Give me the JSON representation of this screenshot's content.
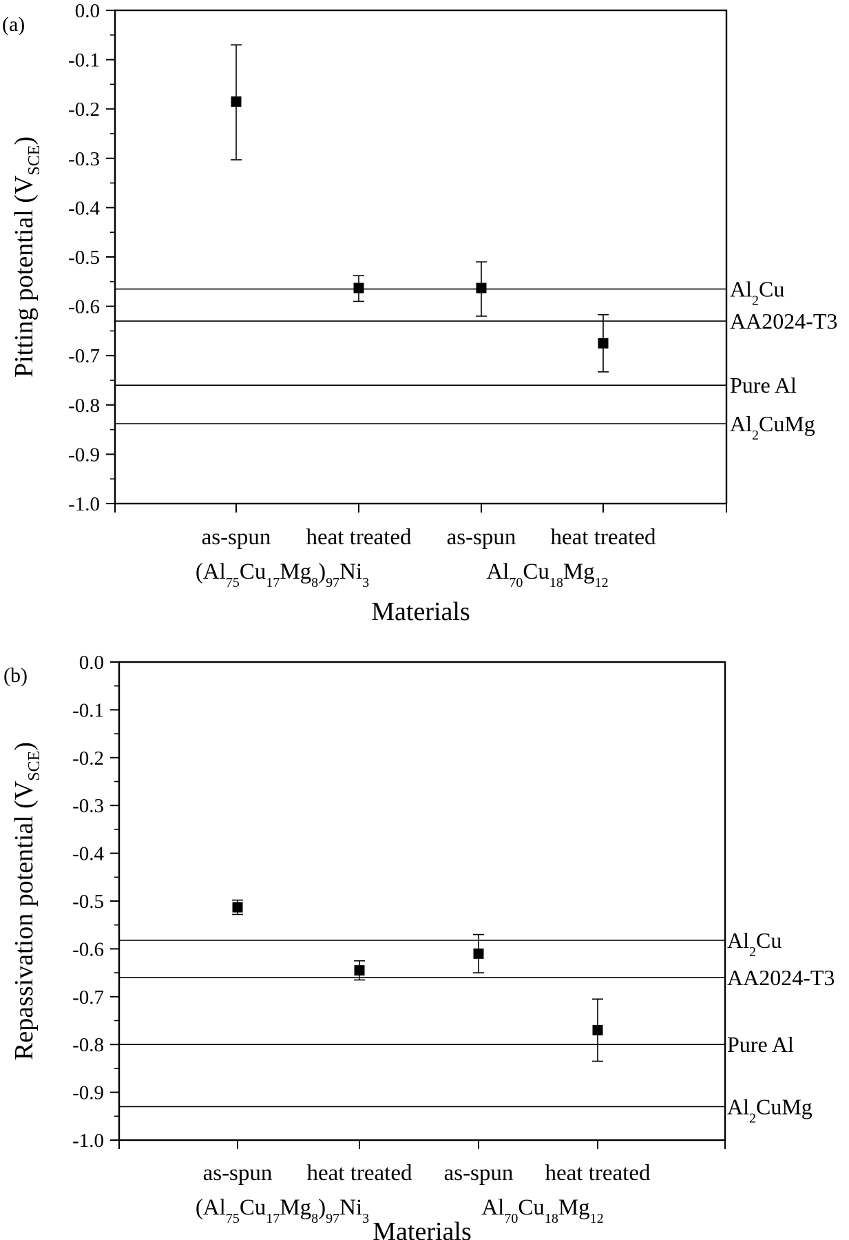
{
  "chart_data": [
    {
      "type": "scatter",
      "panel_label": "(a)",
      "ylabel": "Pitting potential (V",
      "ylabel_sub": "SCE",
      "ylabel_close": ")",
      "xlabel": "Materials",
      "ylim": [
        -1.0,
        0.0
      ],
      "yticks": [
        "0.0",
        "-0.1",
        "-0.2",
        "-0.3",
        "-0.4",
        "-0.5",
        "-0.6",
        "-0.7",
        "-0.8",
        "-0.9",
        "-1.0"
      ],
      "categories": [
        {
          "name": "as-spun"
        },
        {
          "name": "heat treated"
        },
        {
          "name": "as-spun"
        },
        {
          "name": "heat treated"
        }
      ],
      "series": [
        {
          "values": [
            -0.185,
            -0.563,
            -0.563,
            -0.675
          ],
          "err_high": [
            -0.07,
            -0.538,
            -0.51,
            -0.617
          ],
          "err_low": [
            -0.303,
            -0.59,
            -0.62,
            -0.733
          ]
        }
      ],
      "reference_lines": [
        {
          "label": "Al",
          "sub": "2",
          "rest": "Cu",
          "value": -0.565
        },
        {
          "label": "AA2024-T3",
          "sub": "",
          "rest": "",
          "value": -0.63
        },
        {
          "label": "Pure Al",
          "sub": "",
          "rest": "",
          "value": -0.76
        },
        {
          "label": "Al",
          "sub": "2",
          "rest": "CuMg",
          "value": -0.838
        }
      ],
      "groups": [
        {
          "parts": [
            {
              "t": "(Al",
              "sub": false
            },
            {
              "t": "75",
              "sub": true
            },
            {
              "t": "Cu",
              "sub": false
            },
            {
              "t": "17",
              "sub": true
            },
            {
              "t": "Mg",
              "sub": false
            },
            {
              "t": "8",
              "sub": true
            },
            {
              "t": ")",
              "sub": false
            },
            {
              "t": "97",
              "sub": true
            },
            {
              "t": "Ni",
              "sub": false
            },
            {
              "t": "3",
              "sub": true
            }
          ]
        },
        {
          "parts": [
            {
              "t": "Al",
              "sub": false
            },
            {
              "t": "70",
              "sub": true
            },
            {
              "t": "Cu",
              "sub": false
            },
            {
              "t": "18",
              "sub": true
            },
            {
              "t": "Mg",
              "sub": false
            },
            {
              "t": "12",
              "sub": true
            }
          ]
        }
      ]
    },
    {
      "type": "scatter",
      "panel_label": "(b)",
      "ylabel": "Repassivation potential (V",
      "ylabel_sub": "SCE",
      "ylabel_close": ")",
      "xlabel": "Materials",
      "ylim": [
        -1.0,
        0.0
      ],
      "yticks": [
        "0.0",
        "-0.1",
        "-0.2",
        "-0.3",
        "-0.4",
        "-0.5",
        "-0.6",
        "-0.7",
        "-0.8",
        "-0.9",
        "-1.0"
      ],
      "categories": [
        {
          "name": "as-spun"
        },
        {
          "name": "heat treated"
        },
        {
          "name": "as-spun"
        },
        {
          "name": "heat treated"
        }
      ],
      "series": [
        {
          "values": [
            -0.513,
            -0.645,
            -0.61,
            -0.77
          ],
          "err_high": [
            -0.498,
            -0.625,
            -0.57,
            -0.705
          ],
          "err_low": [
            -0.528,
            -0.665,
            -0.65,
            -0.835
          ]
        }
      ],
      "reference_lines": [
        {
          "label": "Al",
          "sub": "2",
          "rest": "Cu",
          "value": -0.582
        },
        {
          "label": "AA2024-T3",
          "sub": "",
          "rest": "",
          "value": -0.66
        },
        {
          "label": "Pure Al",
          "sub": "",
          "rest": "",
          "value": -0.8
        },
        {
          "label": "Al",
          "sub": "2",
          "rest": "CuMg",
          "value": -0.93
        }
      ],
      "groups": [
        {
          "parts": [
            {
              "t": "(Al",
              "sub": false
            },
            {
              "t": "75",
              "sub": true
            },
            {
              "t": "Cu",
              "sub": false
            },
            {
              "t": "17",
              "sub": true
            },
            {
              "t": "Mg",
              "sub": false
            },
            {
              "t": "8",
              "sub": true
            },
            {
              "t": ")",
              "sub": false
            },
            {
              "t": "97",
              "sub": true
            },
            {
              "t": "Ni",
              "sub": false
            },
            {
              "t": "3",
              "sub": true
            }
          ]
        },
        {
          "parts": [
            {
              "t": "Al",
              "sub": false
            },
            {
              "t": "70",
              "sub": true
            },
            {
              "t": "Cu",
              "sub": false
            },
            {
              "t": "18",
              "sub": true
            },
            {
              "t": "Mg",
              "sub": false
            },
            {
              "t": "12",
              "sub": true
            }
          ]
        }
      ]
    }
  ]
}
